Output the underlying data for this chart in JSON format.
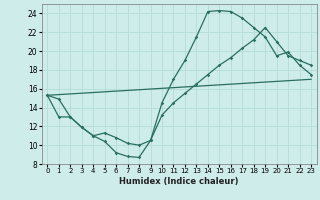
{
  "xlabel": "Humidex (Indice chaleur)",
  "background_color": "#ceecea",
  "grid_color": "#b8deda",
  "line_color": "#2a6e62",
  "xlim": [
    -0.5,
    23.5
  ],
  "ylim": [
    8,
    25
  ],
  "xticks": [
    0,
    1,
    2,
    3,
    4,
    5,
    6,
    7,
    8,
    9,
    10,
    11,
    12,
    13,
    14,
    15,
    16,
    17,
    18,
    19,
    20,
    21,
    22,
    23
  ],
  "yticks": [
    8,
    10,
    12,
    14,
    16,
    18,
    20,
    22,
    24
  ],
  "line1_x": [
    0,
    1,
    2,
    3,
    4,
    5,
    6,
    7,
    8,
    9,
    10,
    11,
    12,
    13,
    14,
    15,
    16,
    17,
    18,
    19,
    20,
    21,
    22,
    23
  ],
  "line1_y": [
    15.3,
    14.9,
    13.0,
    11.9,
    11.0,
    10.4,
    9.2,
    8.8,
    8.7,
    10.5,
    14.5,
    17.0,
    19.0,
    21.5,
    24.2,
    24.3,
    24.2,
    23.5,
    22.5,
    21.5,
    19.5,
    19.9,
    18.5,
    17.5
  ],
  "line2_x": [
    0,
    1,
    2,
    3,
    4,
    5,
    6,
    7,
    8,
    9,
    10,
    11,
    12,
    13,
    14,
    15,
    16,
    17,
    18,
    19,
    20,
    21,
    22,
    23
  ],
  "line2_y": [
    15.3,
    13.0,
    13.0,
    11.9,
    11.0,
    11.3,
    10.8,
    10.2,
    10.0,
    10.5,
    13.2,
    14.5,
    15.5,
    16.5,
    17.5,
    18.5,
    19.3,
    20.3,
    21.2,
    22.5,
    21.0,
    19.5,
    19.0,
    18.5
  ],
  "line3_x": [
    0,
    23
  ],
  "line3_y": [
    15.3,
    17.0
  ]
}
